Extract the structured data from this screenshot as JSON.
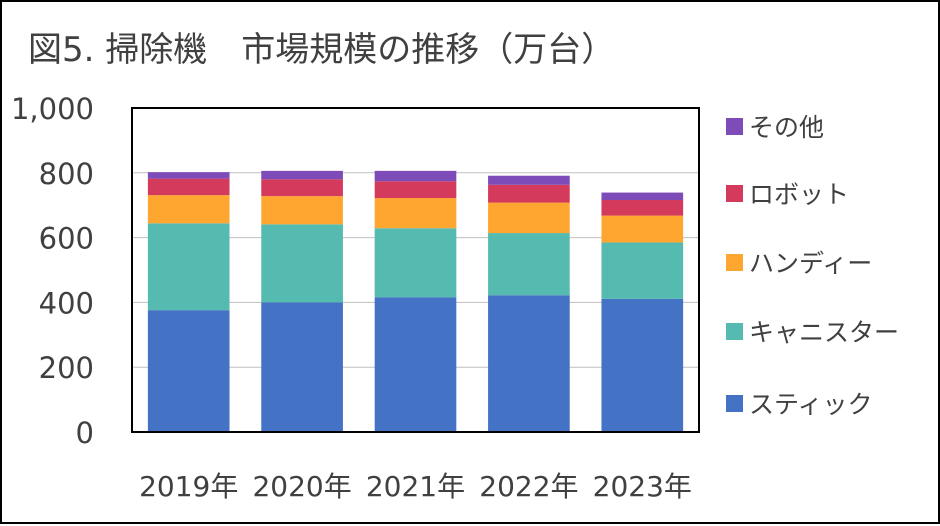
{
  "title": "図5. 掃除機　市場規模の推移（万台）",
  "chart_data": {
    "type": "bar",
    "stacked": true,
    "title": "図5. 掃除機　市場規模の推移（万台）",
    "categories": [
      "2019年",
      "2020年",
      "2021年",
      "2022年",
      "2023年"
    ],
    "ylim": [
      0,
      1000
    ],
    "yticks": [
      0,
      200,
      400,
      600,
      800,
      1000
    ],
    "ytick_labels": [
      "0",
      "200",
      "400",
      "600",
      "800",
      "1,000"
    ],
    "grid": true,
    "legend_position": "right",
    "series": [
      {
        "name": "スティック",
        "color": "#4472C4",
        "values": [
          376,
          400,
          416,
          422,
          411
        ]
      },
      {
        "name": "キャニスター",
        "color": "#55BAB0",
        "values": [
          268,
          241,
          213,
          192,
          174
        ]
      },
      {
        "name": "ハンディー",
        "color": "#FFA630",
        "values": [
          87,
          87,
          93,
          94,
          83
        ]
      },
      {
        "name": "ロボット",
        "color": "#D43A5C",
        "values": [
          51,
          52,
          52,
          55,
          48
        ]
      },
      {
        "name": "その他",
        "color": "#7E4CB8",
        "values": [
          20,
          26,
          32,
          28,
          23
        ]
      }
    ]
  }
}
